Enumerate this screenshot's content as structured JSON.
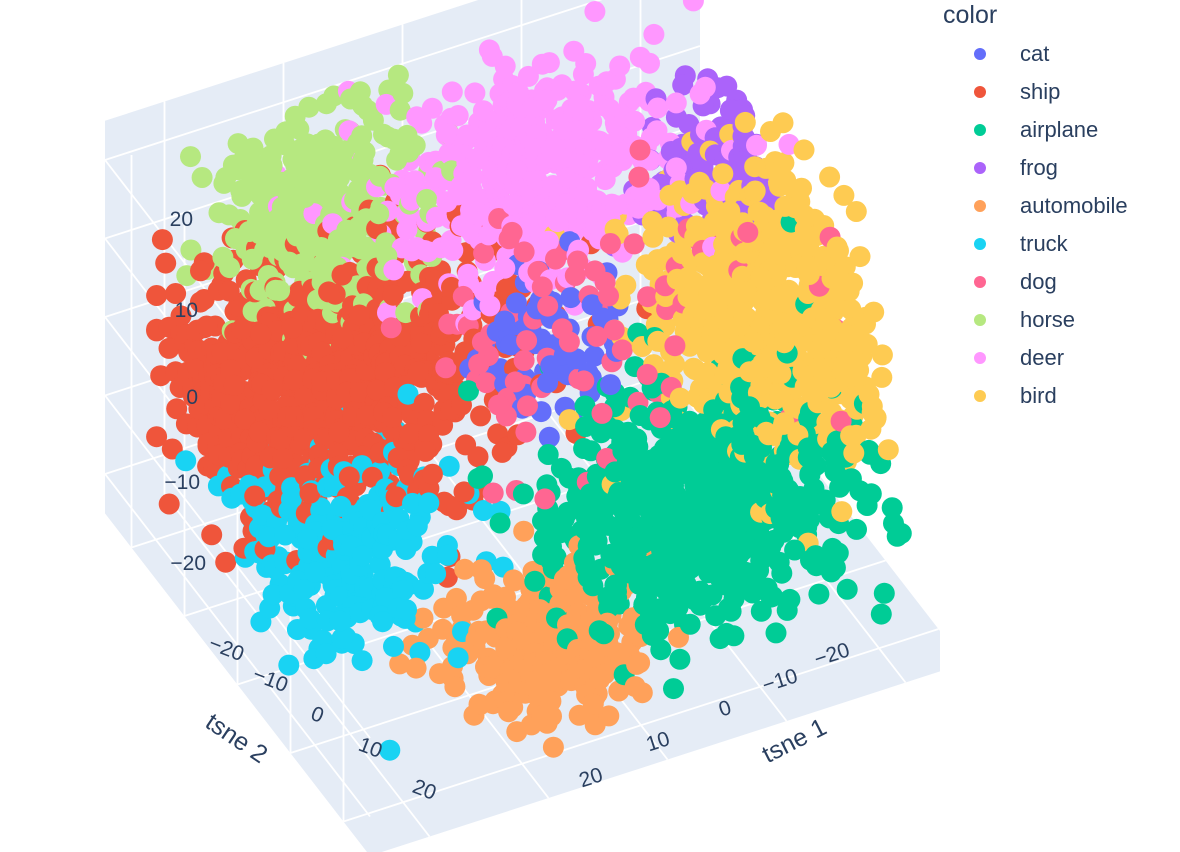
{
  "chart_data": {
    "type": "scatter",
    "subtype": "scatter3d",
    "xlabel": "tsne 1",
    "ylabel": "tsne 2",
    "zlabel": "",
    "x_ticks": [
      "−20",
      "−10",
      "0",
      "10",
      "20"
    ],
    "y_ticks": [
      "−20",
      "−10",
      "0",
      "10",
      "20"
    ],
    "z_ticks": [
      "−20",
      "−10",
      "0",
      "10",
      "20"
    ],
    "xlim": [
      -25,
      25
    ],
    "ylim": [
      -25,
      25
    ],
    "zlim": [
      -25,
      25
    ],
    "background": "#e5ecf6",
    "grid": true,
    "legend_title": "color",
    "legend_placement": "top-right",
    "series": [
      {
        "name": "cat",
        "color": "#636efa",
        "center": [
          -2,
          -2,
          3
        ],
        "spread": [
          3,
          3,
          4
        ],
        "count": 70
      },
      {
        "name": "ship",
        "color": "#ef553b",
        "center": [
          12,
          -12,
          -3
        ],
        "spread": [
          7,
          6,
          6
        ],
        "count": 900
      },
      {
        "name": "airplane",
        "color": "#00cc96",
        "center": [
          -8,
          12,
          -8
        ],
        "spread": [
          6,
          5,
          6
        ],
        "count": 650
      },
      {
        "name": "frog",
        "color": "#ab63fa",
        "center": [
          -20,
          -10,
          10
        ],
        "spread": [
          3,
          3,
          4
        ],
        "count": 140
      },
      {
        "name": "automobile",
        "color": "#ffa15a",
        "center": [
          5,
          12,
          -20
        ],
        "spread": [
          4,
          4,
          3
        ],
        "count": 260
      },
      {
        "name": "truck",
        "color": "#19d3f3",
        "center": [
          16,
          0,
          -12
        ],
        "spread": [
          4,
          6,
          4
        ],
        "count": 260
      },
      {
        "name": "dog",
        "color": "#ff6692",
        "center": [
          -4,
          2,
          9
        ],
        "spread": [
          7,
          6,
          7
        ],
        "count": 90
      },
      {
        "name": "horse",
        "color": "#b6e880",
        "center": [
          10,
          -18,
          12
        ],
        "spread": [
          4,
          4,
          6
        ],
        "count": 300
      },
      {
        "name": "deer",
        "color": "#ff97ff",
        "center": [
          -5,
          -12,
          15
        ],
        "spread": [
          6,
          5,
          5
        ],
        "count": 450
      },
      {
        "name": "bird",
        "color": "#fecb52",
        "center": [
          -18,
          4,
          4
        ],
        "spread": [
          5,
          6,
          7
        ],
        "count": 600
      }
    ]
  }
}
